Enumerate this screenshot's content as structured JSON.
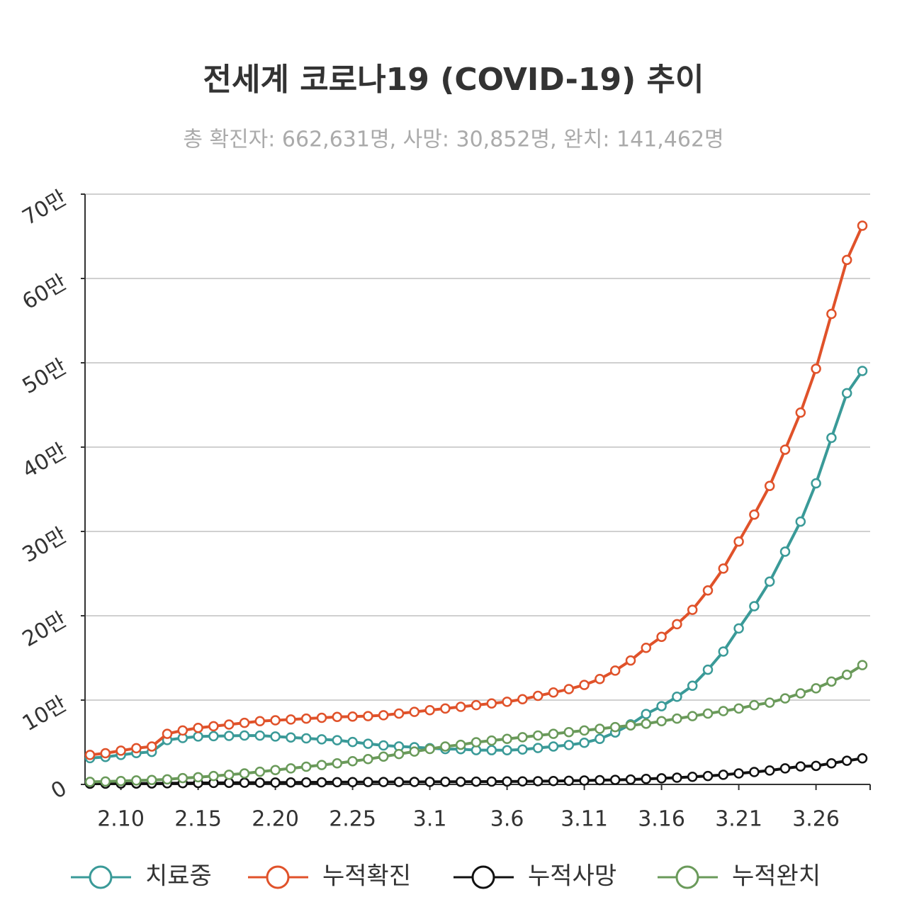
{
  "chart_data": {
    "type": "line",
    "title": "전세계 코로나19 (COVID-19) 추이",
    "subtitle": "총 확진자: 662,631명, 사망: 30,852명, 완치: 141,462명",
    "categories": [
      null,
      null,
      "2.10",
      null,
      null,
      null,
      null,
      "2.15",
      null,
      null,
      null,
      null,
      "2.20",
      null,
      null,
      null,
      null,
      "2.25",
      null,
      null,
      null,
      null,
      "3.1",
      null,
      null,
      null,
      null,
      "3.6",
      null,
      null,
      null,
      null,
      "3.11",
      null,
      null,
      null,
      null,
      "3.16",
      null,
      null,
      null,
      null,
      "3.21",
      null,
      null,
      null,
      null,
      "3.26",
      null,
      null,
      null
    ],
    "series": [
      {
        "name": "치료중",
        "color": "#3a9a98",
        "values": [
          31200,
          32600,
          35000,
          37200,
          38600,
          52600,
          55000,
          56800,
          57200,
          57600,
          58000,
          57900,
          56800,
          55700,
          54600,
          53500,
          52400,
          50300,
          48200,
          46200,
          45100,
          44100,
          43000,
          41900,
          41800,
          40700,
          40600,
          40500,
          41400,
          43200,
          45000,
          46700,
          49400,
          54000,
          61600,
          71200,
          83500,
          92800,
          104000,
          117000,
          136000,
          157600,
          185000,
          211300,
          240500,
          276000,
          311700,
          357000,
          411000,
          464000,
          490317
        ]
      },
      {
        "name": "누적확진",
        "color": "#e0522a",
        "values": [
          35000,
          37000,
          40000,
          43000,
          45000,
          60000,
          64000,
          67000,
          69000,
          71000,
          73000,
          75000,
          76000,
          77000,
          78000,
          79000,
          80000,
          80500,
          81000,
          82000,
          84000,
          86000,
          88000,
          90000,
          92000,
          94000,
          96000,
          98000,
          101000,
          105000,
          109000,
          113000,
          118000,
          125000,
          135000,
          147000,
          162000,
          175000,
          190000,
          207000,
          230000,
          256000,
          288000,
          320000,
          354000,
          397000,
          441000,
          493000,
          558000,
          622000,
          662631
        ]
      },
      {
        "name": "누적사망",
        "color": "#111111",
        "values": [
          800,
          900,
          1000,
          1100,
          1200,
          1400,
          1500,
          1700,
          1800,
          1900,
          2000,
          2100,
          2200,
          2300,
          2400,
          2500,
          2600,
          2700,
          2800,
          2800,
          2900,
          2900,
          3000,
          3100,
          3200,
          3300,
          3400,
          3500,
          3600,
          3800,
          4000,
          4300,
          4600,
          5000,
          5400,
          5800,
          6500,
          7200,
          8000,
          9000,
          10000,
          11400,
          13000,
          14700,
          16500,
          19000,
          21300,
          22000,
          25000,
          28000,
          30852
        ]
      },
      {
        "name": "누적완치",
        "color": "#6a9a5a",
        "values": [
          3000,
          3500,
          4000,
          4700,
          5200,
          6000,
          7500,
          8500,
          10000,
          11500,
          13000,
          15000,
          17000,
          19000,
          21000,
          23000,
          25000,
          27500,
          30000,
          33000,
          36000,
          39000,
          42000,
          45000,
          47000,
          50000,
          52000,
          54000,
          56000,
          58000,
          60000,
          62000,
          64000,
          66000,
          68000,
          70000,
          72000,
          75000,
          78000,
          81000,
          84000,
          87000,
          90000,
          94000,
          97000,
          102000,
          108000,
          114000,
          122000,
          130000,
          141462
        ]
      }
    ],
    "ylim": [
      0,
      700000
    ],
    "yticks": [
      0,
      {
        "value": 100000,
        "label": "10만"
      },
      {
        "value": 200000,
        "label": "20만"
      },
      {
        "value": 300000,
        "label": "30만"
      },
      {
        "value": 400000,
        "label": "40만"
      },
      {
        "value": 500000,
        "label": "50만"
      },
      {
        "value": 600000,
        "label": "60만"
      },
      {
        "value": 700000,
        "label": "70만"
      }
    ],
    "grid": true,
    "legend": "bottom"
  }
}
